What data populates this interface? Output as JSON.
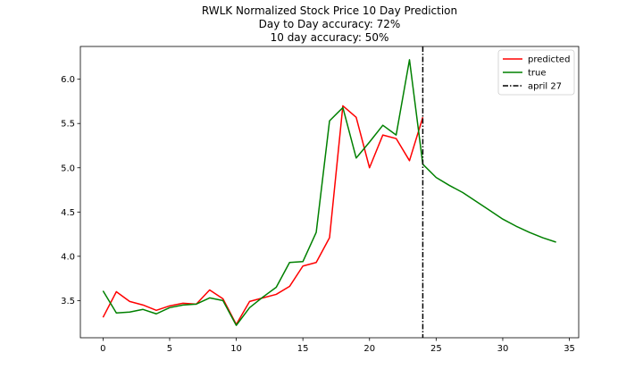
{
  "chart_data": {
    "type": "line",
    "title": "RWLK Normalized Stock Price 10 Day Prediction",
    "subtitle_lines": [
      "Day to Day accuracy: 72%",
      "10 day accuracy: 50%"
    ],
    "xlabel": "",
    "ylabel": "",
    "xlim": [
      -1.7,
      35.7
    ],
    "ylim": [
      3.08,
      6.37
    ],
    "x_ticks": [
      0,
      5,
      10,
      15,
      20,
      25,
      30,
      35
    ],
    "y_ticks": [
      3.5,
      4.0,
      4.5,
      5.0,
      5.5,
      6.0
    ],
    "x_tick_labels": [
      "0",
      "5",
      "10",
      "15",
      "20",
      "25",
      "30",
      "35"
    ],
    "y_tick_labels": [
      "3.5",
      "4.0",
      "4.5",
      "5.0",
      "5.5",
      "6.0"
    ],
    "grid": false,
    "legend_position": "top-right",
    "series": [
      {
        "name": "predicted",
        "color": "#ff0000",
        "style": "solid",
        "x": [
          0,
          1,
          2,
          3,
          4,
          5,
          6,
          7,
          8,
          9,
          10,
          11,
          12,
          13,
          14,
          15,
          16,
          17,
          18,
          19,
          20,
          21,
          22,
          23,
          24
        ],
        "y": [
          3.31,
          3.6,
          3.49,
          3.45,
          3.39,
          3.44,
          3.47,
          3.46,
          3.62,
          3.52,
          3.23,
          3.49,
          3.53,
          3.57,
          3.66,
          3.89,
          3.93,
          4.21,
          5.7,
          5.57,
          5.0,
          5.37,
          5.33,
          5.08,
          5.57
        ]
      },
      {
        "name": "true",
        "color": "#008000",
        "style": "solid",
        "x": [
          0,
          1,
          2,
          3,
          4,
          5,
          6,
          7,
          8,
          9,
          10,
          11,
          12,
          13,
          14,
          15,
          16,
          17,
          18,
          19,
          20,
          21,
          22,
          23,
          24,
          25,
          26,
          27,
          28,
          29,
          30,
          31,
          32,
          33,
          34
        ],
        "y": [
          3.61,
          3.36,
          3.37,
          3.4,
          3.35,
          3.42,
          3.45,
          3.46,
          3.53,
          3.5,
          3.22,
          3.42,
          3.54,
          3.65,
          3.93,
          3.94,
          4.27,
          5.53,
          5.68,
          5.11,
          5.29,
          5.48,
          5.37,
          6.22,
          5.04,
          4.89,
          4.8,
          4.72,
          4.62,
          4.52,
          4.42,
          4.34,
          4.27,
          4.21,
          4.16
        ]
      }
    ],
    "vlines": [
      {
        "name": "april 27",
        "x": 24,
        "color": "#000000",
        "style": "dashdot"
      }
    ]
  }
}
